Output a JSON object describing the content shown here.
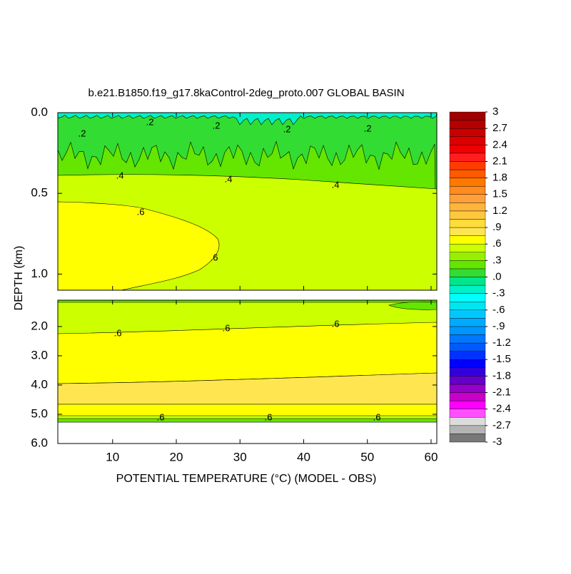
{
  "chart_data": {
    "type": "contour",
    "title": "b.e21.B1850.f19_g17.8kaControl-2deg_proto.007 GLOBAL BASIN",
    "x_label": "POTENTIAL TEMPERATURE (°C) (MODEL - OBS)",
    "y_label": "DEPTH (km)",
    "xlim": [
      1.4,
      60.9
    ],
    "xticks": [
      10,
      20,
      30,
      40,
      50,
      60
    ],
    "panels": [
      {
        "ylim": [
          0,
          1.1
        ],
        "yticks": [
          {
            "value": 0,
            "label": "0.0"
          },
          {
            "value": 0.5,
            "label": "0.5"
          },
          {
            "value": 1,
            "label": "1.0"
          }
        ],
        "regions": [
          0.1,
          -0.2,
          0.3,
          0.5,
          0.65
        ],
        "contour_labels": [
          ".2",
          ".2",
          ".2",
          ".2",
          ".2",
          ".4",
          ".4",
          ".4",
          ".6",
          ".6"
        ]
      },
      {
        "ylim": [
          1.1,
          6
        ],
        "yticks": [
          {
            "value": 2,
            "label": "2.0"
          },
          {
            "value": 3,
            "label": "3.0"
          },
          {
            "value": 4,
            "label": "4.0"
          },
          {
            "value": 5,
            "label": "5.0"
          },
          {
            "value": 6,
            "label": "6.0"
          }
        ],
        "regions": [
          0.5,
          0.3,
          0.7,
          0.8,
          0.7,
          0.3,
          0.3
        ],
        "contour_labels": [
          ".6",
          ".6",
          ".6",
          ".6",
          ".6",
          ".6"
        ]
      }
    ],
    "colorbar": {
      "clim": [
        -3,
        3
      ],
      "ticks": [
        3,
        2.7,
        2.4,
        2.1,
        1.8,
        1.5,
        1.2,
        {
          "value": 0.9,
          "label": ".9"
        },
        {
          "value": 0.6,
          "label": ".6"
        },
        {
          "value": 0.3,
          "label": ".3"
        },
        {
          "value": 0,
          "label": ".0"
        },
        {
          "value": -0.3,
          "label": "-.3"
        },
        {
          "value": -0.6,
          "label": "-.6"
        },
        {
          "value": -0.9,
          "label": "-.9"
        },
        -1.2,
        -1.5,
        -1.8,
        -2.1,
        -2.4,
        -2.7,
        -3
      ],
      "colors": [
        "#787878",
        "#b4b4b4",
        "#dcdcdc",
        "#ff50ff",
        "#ff00ff",
        "#c800c8",
        "#9600c8",
        "#6400c8",
        "#3200dc",
        "#0000ff",
        "#0032ff",
        "#005aff",
        "#0078ff",
        "#0096ff",
        "#00aaff",
        "#00c8ff",
        "#00e6f0",
        "#00ffff",
        "#00f0c8",
        "#00e68c",
        "#32dc32",
        "#64e600",
        "#96f000",
        "#ccff00",
        "#ffff00",
        "#ffe650",
        "#ffdc3c",
        "#ffc83c",
        "#ffb43c",
        "#ffa03c",
        "#ff8c1e",
        "#ff7800",
        "#ff5a00",
        "#ff3c00",
        "#ff1e1e",
        "#f00000",
        "#dc0000",
        "#c80000",
        "#b40000",
        "#a00000"
      ]
    }
  }
}
